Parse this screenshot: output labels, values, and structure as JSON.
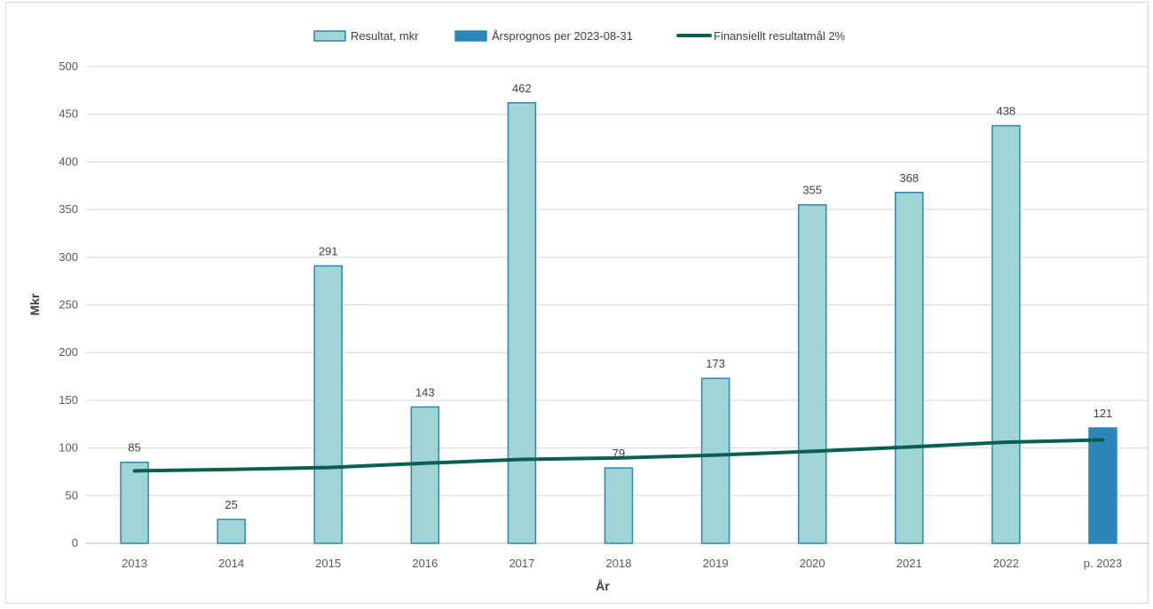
{
  "chart_data": {
    "type": "bar",
    "categories": [
      "2013",
      "2014",
      "2015",
      "2016",
      "2017",
      "2018",
      "2019",
      "2020",
      "2021",
      "2022",
      "p. 2023"
    ],
    "series": [
      {
        "name": "Resultat, mkr",
        "kind": "bar",
        "color": "#a0d5d5",
        "stroke": "#2e86b0",
        "values": [
          85,
          25,
          291,
          143,
          462,
          79,
          173,
          355,
          368,
          438,
          null
        ],
        "labels": [
          "85",
          "25",
          "291",
          "143",
          "462",
          "79",
          "173",
          "355",
          "368",
          "438",
          ""
        ]
      },
      {
        "name": "Årsprognos per 2023-08-31",
        "kind": "bar",
        "color": "#2e86b8",
        "stroke": "#2e86b8",
        "values": [
          null,
          null,
          null,
          null,
          null,
          null,
          null,
          null,
          null,
          null,
          121
        ],
        "labels": [
          "",
          "",
          "",
          "",
          "",
          "",
          "",
          "",
          "",
          "",
          "121"
        ]
      },
      {
        "name": "Finansiellt resultatmål 2%",
        "kind": "line",
        "color": "#0b5e52",
        "values": [
          76,
          77.5,
          79.5,
          84,
          88,
          89.5,
          92.5,
          96.5,
          101,
          106,
          108.5
        ]
      }
    ],
    "xlabel": "År",
    "ylabel": "Mkr",
    "ylim": [
      0,
      500
    ],
    "yticks": [
      0,
      50,
      100,
      150,
      200,
      250,
      300,
      350,
      400,
      450,
      500
    ],
    "grid": true,
    "legend_position": "top"
  }
}
